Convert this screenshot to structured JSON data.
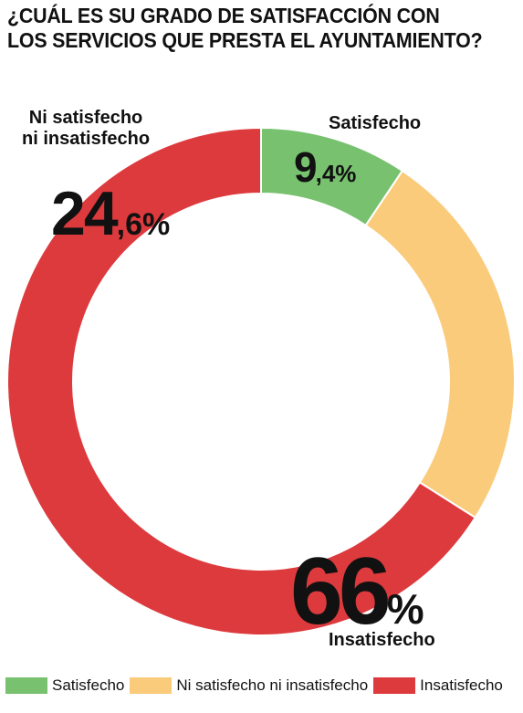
{
  "title_lines": [
    "¿CUÁL ES SU GRADO DE SATISFACCIÓN CON",
    "LOS SERVICIOS QUE PRESTA EL AYUNTAMIENTO?"
  ],
  "chart_data": {
    "type": "pie",
    "donut": true,
    "title": "¿CUÁL ES SU GRADO DE SATISFACCIÓN CON LOS SERVICIOS QUE PRESTA EL AYUNTAMIENTO?",
    "categories": [
      "Satisfecho",
      "Ni satisfecho ni insatisfecho",
      "Insatisfecho"
    ],
    "values": [
      9.4,
      24.6,
      66
    ],
    "colors": [
      "#77c16f",
      "#fbcb7c",
      "#dd3a3d"
    ],
    "legend_position": "bottom"
  },
  "labels": {
    "satisfecho": "Satisfecho",
    "ni_line1": "Ni satisfecho",
    "ni_line2": "ni insatisfecho",
    "insatisfecho": "Insatisfecho"
  },
  "values_text": {
    "sat_int": "9",
    "sat_dec": ",4%",
    "ni_int": "24",
    "ni_dec": ",6%",
    "ins_int": "66",
    "ins_dec": "%"
  },
  "legend": [
    {
      "label": "Satisfecho",
      "color": "#77c16f"
    },
    {
      "label": "Ni satisfecho ni insatisfecho",
      "color": "#fbcb7c"
    },
    {
      "label": "Insatisfecho",
      "color": "#dd3a3d"
    }
  ]
}
